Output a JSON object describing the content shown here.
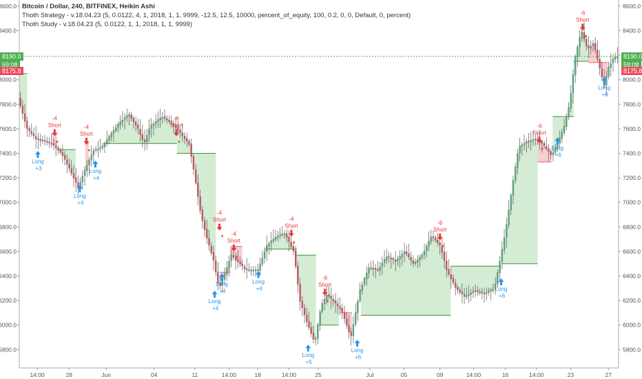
{
  "legend": {
    "line1": "Bitcoin / Dollar, 240, BITFINEX, Heikin Ashi",
    "line2": "Thoth Strategy - v.18.04.23 (5, 0.0122, 4, 1, 2018, 1, 1, 9999, -12.5, 12.5, 10000, percent_of_equity, 100, 0.2, 0, 0, Default, 0, percent)",
    "line3": "Thoth Study - v.18.04.23 (5, 0.0122, 1, 1, 2018, 1, 1, 9999)"
  },
  "price_tags": {
    "last_price": "8190.0",
    "countdown": "59:08",
    "position_price": "8175.8"
  },
  "colors": {
    "up": "#53b987",
    "down": "#eb4d5c",
    "green_fill": "#cfe9cf",
    "red_fill": "#f6c9cd",
    "long": "#2196f3",
    "short": "#e53935",
    "last_line": "#4caf50"
  },
  "chart_data": {
    "type": "candlestick",
    "y_axis": {
      "min": 5650,
      "max": 8650,
      "ticks": [
        5800,
        6000,
        6200,
        6400,
        6600,
        6800,
        7000,
        7200,
        7400,
        7600,
        7800,
        8000,
        8200,
        8400,
        8600
      ],
      "tick_labels": [
        "5800.0",
        "6000.0",
        "6200.0",
        "6400.0",
        "6600.0",
        "6800.0",
        "7000.0",
        "7200.0",
        "7400.0",
        "7600.0",
        "7800.0",
        "8000.0",
        "8200.0",
        "8400.0",
        "8600.0"
      ]
    },
    "x_axis": {
      "min": 0,
      "max": 100,
      "ticks": [
        {
          "x": 3,
          "label": "14:00"
        },
        {
          "x": 8.3,
          "label": "28"
        },
        {
          "x": 14.5,
          "label": "Jun"
        },
        {
          "x": 22.5,
          "label": "04"
        },
        {
          "x": 29.3,
          "label": "11"
        },
        {
          "x": 35,
          "label": "14:00"
        },
        {
          "x": 39.8,
          "label": "18"
        },
        {
          "x": 45,
          "label": "14:00"
        },
        {
          "x": 49.9,
          "label": "25"
        },
        {
          "x": 58.5,
          "label": "Jul"
        },
        {
          "x": 64.2,
          "label": "05"
        },
        {
          "x": 70.2,
          "label": "09"
        },
        {
          "x": 75.8,
          "label": "14:00"
        },
        {
          "x": 81.1,
          "label": "16"
        },
        {
          "x": 86.3,
          "label": "14:00"
        },
        {
          "x": 92,
          "label": "23"
        },
        {
          "x": 98.3,
          "label": "27"
        }
      ]
    },
    "price_path": [
      [
        0,
        7850
      ],
      [
        1.5,
        7600
      ],
      [
        3,
        7520
      ],
      [
        5.5,
        7480
      ],
      [
        7.2,
        7400
      ],
      [
        8.5,
        7280
      ],
      [
        10,
        7120
      ],
      [
        11,
        7250
      ],
      [
        12.5,
        7420
      ],
      [
        14,
        7450
      ],
      [
        15.5,
        7560
      ],
      [
        17,
        7660
      ],
      [
        18.5,
        7720
      ],
      [
        20,
        7600
      ],
      [
        21,
        7480
      ],
      [
        22,
        7620
      ],
      [
        24,
        7700
      ],
      [
        26,
        7630
      ],
      [
        27.5,
        7540
      ],
      [
        28.5,
        7480
      ],
      [
        29.5,
        7200
      ],
      [
        30.5,
        6900
      ],
      [
        31.5,
        6700
      ],
      [
        32.5,
        6550
      ],
      [
        33.5,
        6300
      ],
      [
        34.5,
        6420
      ],
      [
        35.5,
        6570
      ],
      [
        36.5,
        6520
      ],
      [
        38,
        6450
      ],
      [
        40,
        6450
      ],
      [
        41.5,
        6650
      ],
      [
        43,
        6720
      ],
      [
        44.5,
        6750
      ],
      [
        46,
        6600
      ],
      [
        47,
        6200
      ],
      [
        48,
        6050
      ],
      [
        49.5,
        5850
      ],
      [
        50.5,
        6150
      ],
      [
        51.5,
        6250
      ],
      [
        52.5,
        6200
      ],
      [
        54,
        6120
      ],
      [
        55.5,
        5900
      ],
      [
        57,
        6280
      ],
      [
        58.5,
        6470
      ],
      [
        60,
        6450
      ],
      [
        61.5,
        6560
      ],
      [
        63,
        6520
      ],
      [
        64.5,
        6600
      ],
      [
        66,
        6500
      ],
      [
        67.5,
        6580
      ],
      [
        69,
        6730
      ],
      [
        70.5,
        6640
      ],
      [
        71.5,
        6450
      ],
      [
        73,
        6300
      ],
      [
        74.5,
        6230
      ],
      [
        76,
        6280
      ],
      [
        78,
        6260
      ],
      [
        79.5,
        6300
      ],
      [
        80.5,
        6550
      ],
      [
        81.5,
        6820
      ],
      [
        82.5,
        7150
      ],
      [
        83.5,
        7450
      ],
      [
        85,
        7500
      ],
      [
        86.5,
        7520
      ],
      [
        88,
        7450
      ],
      [
        89,
        7380
      ],
      [
        90,
        7480
      ],
      [
        91,
        7600
      ],
      [
        92,
        7800
      ],
      [
        93,
        8200
      ],
      [
        94,
        8400
      ],
      [
        95,
        8250
      ],
      [
        96,
        8300
      ],
      [
        97,
        8100
      ],
      [
        97.8,
        7950
      ],
      [
        98.5,
        8100
      ],
      [
        99.5,
        8190
      ]
    ],
    "stop_steps": [
      {
        "x0": 0,
        "x1": 1.3,
        "y": 8050,
        "dir": "green"
      },
      {
        "x0": 5.5,
        "x1": 6.3,
        "y": 7560,
        "dir": "red"
      },
      {
        "x0": 6.3,
        "x1": 9.4,
        "y": 7430,
        "dir": "green"
      },
      {
        "x0": 11,
        "x1": 11.6,
        "y": 7480,
        "dir": "red"
      },
      {
        "x0": 14,
        "x1": 26.3,
        "y": 7480,
        "dir": "green"
      },
      {
        "x0": 26.3,
        "x1": 32.8,
        "y": 7400,
        "dir": "green"
      },
      {
        "x0": 33.5,
        "x1": 35.2,
        "y": 6430,
        "dir": "red"
      },
      {
        "x0": 35.2,
        "x1": 37.2,
        "y": 6640,
        "dir": "red"
      },
      {
        "x0": 41,
        "x1": 46.3,
        "y": 6620,
        "dir": "green"
      },
      {
        "x0": 46.3,
        "x1": 49.5,
        "y": 6570,
        "dir": "green"
      },
      {
        "x0": 50,
        "x1": 53.3,
        "y": 6000,
        "dir": "green"
      },
      {
        "x0": 53.5,
        "x1": 55.5,
        "y": 6100,
        "dir": "red"
      },
      {
        "x0": 57,
        "x1": 72,
        "y": 6080,
        "dir": "green"
      },
      {
        "x0": 72,
        "x1": 80.3,
        "y": 6480,
        "dir": "green"
      },
      {
        "x0": 80.5,
        "x1": 86.5,
        "y": 6500,
        "dir": "green"
      },
      {
        "x0": 86.5,
        "x1": 88.8,
        "y": 7330,
        "dir": "red"
      },
      {
        "x0": 89,
        "x1": 92.5,
        "y": 7700,
        "dir": "green"
      },
      {
        "x0": 92.5,
        "x1": 95,
        "y": 8150,
        "dir": "green"
      },
      {
        "x0": 95,
        "x1": 98.2,
        "y": 8140,
        "dir": "red"
      }
    ],
    "signals": [
      {
        "type": "long",
        "x": 3.1,
        "y": 7420,
        "label": "Long",
        "qty": "+3"
      },
      {
        "type": "short",
        "x": 5.9,
        "y": 7540,
        "label": "Short",
        "qty": "-4"
      },
      {
        "type": "long",
        "x": 10.1,
        "y": 7140,
        "label": "Long",
        "qty": "+4"
      },
      {
        "type": "short",
        "x": 11.2,
        "y": 7470,
        "label": "Short",
        "qty": "-4"
      },
      {
        "type": "long",
        "x": 12.7,
        "y": 7340,
        "label": "Long",
        "qty": "+4"
      },
      {
        "type": "short",
        "x": 26.2,
        "y": 7540,
        "label": "Short",
        "qty": "-4"
      },
      {
        "type": "long",
        "x": 32.6,
        "y": 6280,
        "label": "Long",
        "qty": "+4"
      },
      {
        "type": "long",
        "x": 33.8,
        "y": 6420,
        "label": "Long",
        "qty": "+4"
      },
      {
        "type": "short",
        "x": 33.4,
        "y": 6770,
        "label": "Short",
        "qty": "-4"
      },
      {
        "type": "short",
        "x": 35.8,
        "y": 6600,
        "label": "Short",
        "qty": "-4"
      },
      {
        "type": "long",
        "x": 39.9,
        "y": 6440,
        "label": "Long",
        "qty": "+4"
      },
      {
        "type": "short",
        "x": 45.4,
        "y": 6720,
        "label": "Short",
        "qty": "-4"
      },
      {
        "type": "long",
        "x": 48.2,
        "y": 5840,
        "label": "Long",
        "qty": "+5"
      },
      {
        "type": "short",
        "x": 51.0,
        "y": 6240,
        "label": "Short",
        "qty": "-6"
      },
      {
        "type": "long",
        "x": 56.4,
        "y": 5880,
        "label": "Long",
        "qty": "+6"
      },
      {
        "type": "short",
        "x": 70.2,
        "y": 6690,
        "label": "Short",
        "qty": "-6"
      },
      {
        "type": "long",
        "x": 80.4,
        "y": 6380,
        "label": "Long",
        "qty": "+6"
      },
      {
        "type": "short",
        "x": 86.8,
        "y": 7480,
        "label": "Short",
        "qty": "-6"
      },
      {
        "type": "long",
        "x": 89.8,
        "y": 7530,
        "label": "Long",
        "qty": "+6"
      },
      {
        "type": "short",
        "x": 94.0,
        "y": 8400,
        "label": "Short",
        "qty": "-6"
      },
      {
        "type": "long",
        "x": 97.6,
        "y": 8020,
        "label": "Long",
        "qty": "+6"
      }
    ],
    "last_price": 8190,
    "position_price": 8175.8,
    "grid": false
  }
}
